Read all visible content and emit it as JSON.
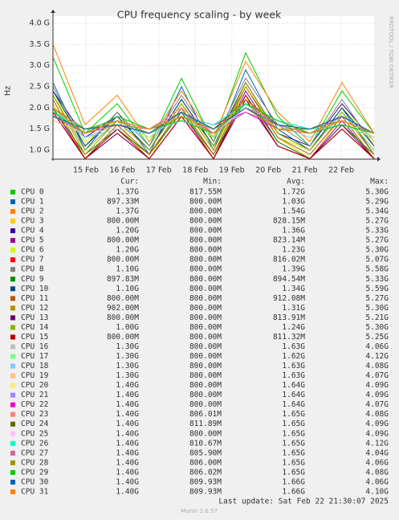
{
  "chart_data": {
    "type": "line",
    "title": "CPU frequency scaling - by week",
    "y_label": "Hz",
    "side_note": "RRDTOOL / TOBI OETIKER",
    "ylim": [
      0.79,
      4.17
    ],
    "yticks": [
      {
        "value": 1,
        "label": "1.0 G"
      },
      {
        "value": 1.5,
        "label": "1.5 G"
      },
      {
        "value": 2,
        "label": "2.0 G"
      },
      {
        "value": 2.5,
        "label": "2.5 G"
      },
      {
        "value": 3,
        "label": "3.0 G"
      },
      {
        "value": 3.5,
        "label": "3.5 G"
      },
      {
        "value": 4,
        "label": "4.0 G"
      }
    ],
    "xlim": [
      14.1,
      22.9
    ],
    "xticks": [
      {
        "value": 15,
        "label": "15 Feb"
      },
      {
        "value": 16,
        "label": "16 Feb"
      },
      {
        "value": 17,
        "label": "17 Feb"
      },
      {
        "value": 18,
        "label": "18 Feb"
      },
      {
        "value": 19,
        "label": "19 Feb"
      },
      {
        "value": 20,
        "label": "20 Feb"
      },
      {
        "value": 21,
        "label": "21 Feb"
      },
      {
        "value": 22,
        "label": "22 Feb"
      }
    ],
    "grid": true,
    "x": [
      14.1,
      14.98,
      15.86,
      16.74,
      17.62,
      18.5,
      19.38,
      20.26,
      21.14,
      22.02,
      22.9
    ],
    "legend_headers": [
      "Cur:",
      "Min:",
      "Avg:",
      "Max:"
    ],
    "series": [
      {
        "name": "CPU 0",
        "color": "#00cc00",
        "stats": [
          "1.37G",
          "817.55M",
          "1.72G",
          "5.30G"
        ],
        "values": [
          3.2,
          1.4,
          2.1,
          1.1,
          2.7,
          1.2,
          3.3,
          1.8,
          1.1,
          2.4,
          1.4
        ]
      },
      {
        "name": "CPU 1",
        "color": "#0066b3",
        "stats": [
          "897.33M",
          "800.00M",
          "1.03G",
          "5.29G"
        ],
        "values": [
          2.6,
          1.0,
          1.9,
          0.9,
          2.5,
          1.0,
          2.9,
          1.5,
          1.0,
          2.0,
          0.9
        ]
      },
      {
        "name": "CPU 2",
        "color": "#ff8000",
        "stats": [
          "1.37G",
          "800.00M",
          "1.54G",
          "5.34G"
        ],
        "values": [
          3.5,
          1.6,
          2.3,
          1.2,
          2.4,
          1.3,
          3.1,
          1.9,
          1.2,
          2.6,
          1.4
        ]
      },
      {
        "name": "CPU 3",
        "color": "#ffcc00",
        "stats": [
          "800.00M",
          "800.00M",
          "828.15M",
          "5.27G"
        ],
        "values": [
          2.1,
          0.8,
          1.6,
          0.8,
          2.0,
          0.8,
          2.5,
          1.3,
          0.8,
          1.8,
          0.8
        ]
      },
      {
        "name": "CPU 4",
        "color": "#330099",
        "stats": [
          "1.20G",
          "800.00M",
          "1.36G",
          "5.33G"
        ],
        "values": [
          2.4,
          1.3,
          1.8,
          1.0,
          2.2,
          1.1,
          2.6,
          1.4,
          1.1,
          2.1,
          1.2
        ]
      },
      {
        "name": "CPU 5",
        "color": "#990099",
        "stats": [
          "800.00M",
          "800.00M",
          "823.14M",
          "5.27G"
        ],
        "values": [
          2.0,
          0.8,
          1.5,
          0.9,
          1.9,
          0.8,
          2.4,
          1.2,
          0.8,
          1.7,
          0.8
        ]
      },
      {
        "name": "CPU 6",
        "color": "#ccff00",
        "stats": [
          "1.20G",
          "800.00M",
          "1.23G",
          "5.30G"
        ],
        "values": [
          2.3,
          1.2,
          1.7,
          1.0,
          2.1,
          1.0,
          2.5,
          1.3,
          1.0,
          2.0,
          1.2
        ]
      },
      {
        "name": "CPU 7",
        "color": "#ff0000",
        "stats": [
          "800.00M",
          "800.00M",
          "816.02M",
          "5.07G"
        ],
        "values": [
          1.9,
          0.8,
          1.4,
          0.8,
          1.8,
          0.8,
          2.2,
          1.1,
          0.8,
          1.5,
          0.8
        ]
      },
      {
        "name": "CPU 8",
        "color": "#808080",
        "stats": [
          "1.10G",
          "800.00M",
          "1.39G",
          "5.58G"
        ],
        "values": [
          2.5,
          1.1,
          1.9,
          1.1,
          2.3,
          1.2,
          2.7,
          1.6,
          1.1,
          2.2,
          1.1
        ]
      },
      {
        "name": "CPU 9",
        "color": "#008f00",
        "stats": [
          "897.83M",
          "800.00M",
          "894.54M",
          "5.33G"
        ],
        "values": [
          2.0,
          0.9,
          1.5,
          0.9,
          1.9,
          0.9,
          2.3,
          1.2,
          0.8,
          1.6,
          0.9
        ]
      },
      {
        "name": "CPU 10",
        "color": "#00487d",
        "stats": [
          "1.10G",
          "800.00M",
          "1.34G",
          "5.59G"
        ],
        "values": [
          2.4,
          1.1,
          1.8,
          1.0,
          2.2,
          1.1,
          2.6,
          1.4,
          1.0,
          2.0,
          1.1
        ]
      },
      {
        "name": "CPU 11",
        "color": "#b35a00",
        "stats": [
          "800.00M",
          "800.00M",
          "912.08M",
          "5.27G"
        ],
        "values": [
          2.2,
          0.8,
          1.6,
          0.9,
          2.0,
          0.9,
          2.5,
          1.3,
          0.9,
          1.8,
          0.8
        ]
      },
      {
        "name": "CPU 12",
        "color": "#b38f00",
        "stats": [
          "902.00M",
          "800.00M",
          "1.31G",
          "5.30G"
        ],
        "values": [
          2.3,
          0.9,
          1.7,
          1.0,
          2.1,
          1.0,
          2.6,
          1.4,
          1.0,
          1.9,
          0.9
        ]
      },
      {
        "name": "CPU 13",
        "color": "#6b006b",
        "stats": [
          "800.00M",
          "800.00M",
          "813.91M",
          "5.21G"
        ],
        "values": [
          1.9,
          0.8,
          1.4,
          0.8,
          1.8,
          0.8,
          2.2,
          1.1,
          0.8,
          1.6,
          0.8
        ]
      },
      {
        "name": "CPU 14",
        "color": "#8fb300",
        "stats": [
          "1.00G",
          "800.00M",
          "1.24G",
          "5.30G"
        ],
        "values": [
          2.3,
          1.0,
          1.7,
          1.0,
          2.1,
          1.1,
          2.5,
          1.4,
          1.0,
          1.9,
          1.0
        ]
      },
      {
        "name": "CPU 15",
        "color": "#b30000",
        "stats": [
          "800.00M",
          "800.00M",
          "811.32M",
          "5.25G"
        ],
        "values": [
          1.9,
          0.8,
          1.5,
          0.8,
          1.8,
          0.8,
          2.3,
          1.1,
          0.8,
          1.5,
          0.8
        ]
      },
      {
        "name": "CPU 16",
        "color": "#bebebe",
        "stats": [
          "1.30G",
          "800.00M",
          "1.63G",
          "4.06G"
        ],
        "values": [
          1.9,
          1.3,
          1.6,
          1.4,
          1.8,
          1.4,
          2.0,
          1.6,
          1.4,
          1.7,
          1.3
        ]
      },
      {
        "name": "CPU 17",
        "color": "#80ff80",
        "stats": [
          "1.30G",
          "800.00M",
          "1.62G",
          "4.12G"
        ],
        "values": [
          1.8,
          1.4,
          1.7,
          1.3,
          1.9,
          1.3,
          2.1,
          1.5,
          1.4,
          1.6,
          1.3
        ]
      },
      {
        "name": "CPU 18",
        "color": "#80c9ff",
        "stats": [
          "1.30G",
          "800.00M",
          "1.63G",
          "4.08G"
        ],
        "values": [
          2.0,
          1.3,
          1.5,
          1.4,
          1.7,
          1.5,
          1.9,
          1.6,
          1.3,
          1.8,
          1.3
        ]
      },
      {
        "name": "CPU 19",
        "color": "#ffc080",
        "stats": [
          "1.30G",
          "800.00M",
          "1.63G",
          "4.07G"
        ],
        "values": [
          1.7,
          1.4,
          1.6,
          1.5,
          1.8,
          1.4,
          2.2,
          1.5,
          1.4,
          1.7,
          1.3
        ]
      },
      {
        "name": "CPU 20",
        "color": "#ffe680",
        "stats": [
          "1.40G",
          "800.00M",
          "1.64G",
          "4.09G"
        ],
        "values": [
          1.9,
          1.5,
          1.7,
          1.4,
          1.9,
          1.5,
          2.0,
          1.7,
          1.5,
          1.6,
          1.4
        ]
      },
      {
        "name": "CPU 21",
        "color": "#aa80ff",
        "stats": [
          "1.40G",
          "800.00M",
          "1.64G",
          "4.09G"
        ],
        "values": [
          1.8,
          1.4,
          1.8,
          1.5,
          1.7,
          1.4,
          2.1,
          1.6,
          1.4,
          1.8,
          1.4
        ]
      },
      {
        "name": "CPU 22",
        "color": "#ee00cc",
        "stats": [
          "1.40G",
          "800.00M",
          "1.64G",
          "4.07G"
        ],
        "values": [
          2.0,
          1.5,
          1.6,
          1.4,
          1.8,
          1.6,
          1.9,
          1.5,
          1.5,
          1.7,
          1.4
        ]
      },
      {
        "name": "CPU 23",
        "color": "#ff8080",
        "stats": [
          "1.40G",
          "806.01M",
          "1.65G",
          "4.08G"
        ],
        "values": [
          1.9,
          1.4,
          1.7,
          1.5,
          2.0,
          1.4,
          2.0,
          1.7,
          1.4,
          1.6,
          1.4
        ]
      },
      {
        "name": "CPU 24",
        "color": "#666600",
        "stats": [
          "1.40G",
          "811.89M",
          "1.65G",
          "4.09G"
        ],
        "values": [
          1.8,
          1.5,
          1.6,
          1.4,
          1.9,
          1.5,
          2.2,
          1.6,
          1.5,
          1.8,
          1.4
        ]
      },
      {
        "name": "CPU 25",
        "color": "#ffbfff",
        "stats": [
          "1.40G",
          "800.00M",
          "1.65G",
          "4.09G"
        ],
        "values": [
          2.0,
          1.4,
          1.8,
          1.5,
          1.7,
          1.4,
          2.0,
          1.5,
          1.4,
          1.7,
          1.4
        ]
      },
      {
        "name": "CPU 26",
        "color": "#00ffcc",
        "stats": [
          "1.40G",
          "810.67M",
          "1.65G",
          "4.12G"
        ],
        "values": [
          1.9,
          1.5,
          1.7,
          1.4,
          1.8,
          1.6,
          2.1,
          1.7,
          1.5,
          1.6,
          1.4
        ]
      },
      {
        "name": "CPU 27",
        "color": "#cc6699",
        "stats": [
          "1.40G",
          "805.90M",
          "1.65G",
          "4.04G"
        ],
        "values": [
          1.8,
          1.4,
          1.6,
          1.5,
          1.9,
          1.4,
          1.9,
          1.6,
          1.4,
          1.8,
          1.4
        ]
      },
      {
        "name": "CPU 28",
        "color": "#999900",
        "stats": [
          "1.40G",
          "806.00M",
          "1.65G",
          "4.06G"
        ],
        "values": [
          2.0,
          1.5,
          1.7,
          1.4,
          1.8,
          1.5,
          2.0,
          1.5,
          1.5,
          1.7,
          1.4
        ]
      },
      {
        "name": "CPU 29",
        "color": "#00cc00",
        "stats": [
          "1.40G",
          "806.02M",
          "1.65G",
          "4.08G"
        ],
        "values": [
          1.9,
          1.4,
          1.8,
          1.5,
          1.7,
          1.4,
          2.1,
          1.7,
          1.4,
          1.6,
          1.4
        ]
      },
      {
        "name": "CPU 30",
        "color": "#0066b3",
        "stats": [
          "1.40G",
          "809.93M",
          "1.66G",
          "4.06G"
        ],
        "values": [
          1.8,
          1.5,
          1.6,
          1.4,
          1.9,
          1.5,
          2.0,
          1.6,
          1.5,
          1.8,
          1.4
        ]
      },
      {
        "name": "CPU 31",
        "color": "#ff8000",
        "stats": [
          "1.40G",
          "809.93M",
          "1.66G",
          "4.10G"
        ],
        "values": [
          2.0,
          1.4,
          1.7,
          1.5,
          1.8,
          1.4,
          2.2,
          1.5,
          1.4,
          1.7,
          1.4
        ]
      }
    ],
    "last_update": "Last update: Sat Feb 22 21:30:07 2025",
    "footer": "Munin 2.0.57"
  }
}
